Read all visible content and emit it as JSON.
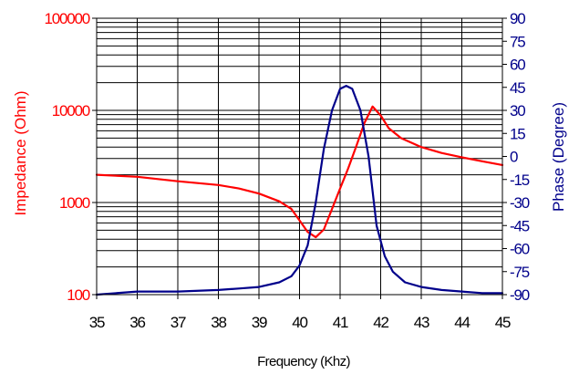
{
  "chart_data": {
    "type": "line",
    "xlabel": "Frequency (Khz)",
    "ylabel_left": "Impedance (Ohm)",
    "ylabel_right": "Phase (Degree)",
    "xlim": [
      35,
      45
    ],
    "ylim_left": [
      100,
      100000
    ],
    "ylim_right": [
      -90,
      90
    ],
    "left_scale": "log",
    "grid": true,
    "x_ticks": [
      "35",
      "36",
      "37",
      "38",
      "39",
      "40",
      "41",
      "42",
      "43",
      "44",
      "45"
    ],
    "y_left_ticks": [
      "100",
      "1000",
      "10000",
      "100000"
    ],
    "y_right_ticks": [
      "90",
      "75",
      "60",
      "45",
      "30",
      "15",
      "0",
      "-15",
      "-30",
      "-45",
      "-60",
      "-75",
      "-90"
    ],
    "series": [
      {
        "name": "Impedance (Ohm)",
        "axis": "left",
        "color": "#ff0000",
        "x": [
          35,
          36,
          37,
          38,
          38.5,
          39,
          39.5,
          39.8,
          40.0,
          40.2,
          40.4,
          40.6,
          40.8,
          41.0,
          41.2,
          41.4,
          41.6,
          41.8,
          42.0,
          42.2,
          42.5,
          43,
          43.5,
          44,
          44.5,
          45
        ],
        "values": [
          2000,
          1900,
          1700,
          1550,
          1420,
          1250,
          1030,
          850,
          640,
          480,
          420,
          510,
          850,
          1420,
          2350,
          4100,
          7300,
          11000,
          8800,
          6400,
          5000,
          4000,
          3450,
          3100,
          2800,
          2550
        ]
      },
      {
        "name": "Phase (Degree)",
        "axis": "right",
        "color": "#00008b",
        "x": [
          35,
          36,
          37,
          38,
          38.5,
          39,
          39.5,
          39.8,
          40.0,
          40.2,
          40.4,
          40.6,
          40.8,
          41.0,
          41.15,
          41.3,
          41.5,
          41.7,
          41.9,
          42.1,
          42.3,
          42.6,
          43,
          43.5,
          44,
          44.5,
          45
        ],
        "values": [
          -90,
          -88,
          -88,
          -87,
          -86,
          -85,
          -82,
          -78,
          -71,
          -58,
          -30,
          5,
          30,
          44,
          46,
          44,
          30,
          0,
          -45,
          -65,
          -75,
          -82,
          -85,
          -87,
          -88,
          -89,
          -89
        ]
      }
    ]
  }
}
